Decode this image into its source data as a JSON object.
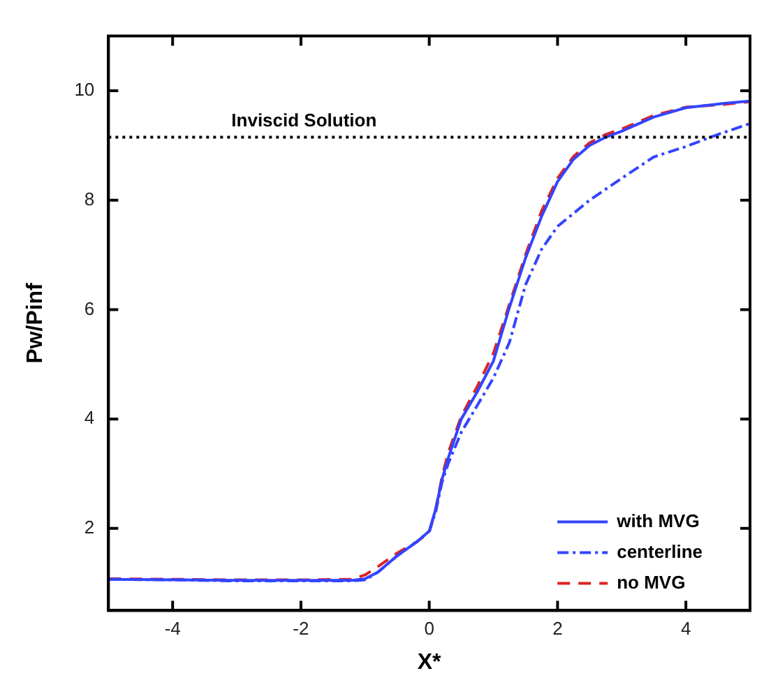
{
  "chart_data": {
    "type": "line",
    "xlabel": "X*",
    "ylabel": "Pw/Pinf",
    "xlim": [
      -5,
      5
    ],
    "xticks": [
      -4,
      -2,
      0,
      2,
      4
    ],
    "ylim": [
      0.5,
      11
    ],
    "yticks": [
      2,
      4,
      6,
      8,
      10
    ],
    "grid": false,
    "legend": "bottom right",
    "marker": "none",
    "ref_lines": [
      {
        "axis": "y",
        "value": 9.15,
        "label": "Inviscid Solution",
        "color": "#000000",
        "line_style": "dotted"
      }
    ],
    "series": [
      {
        "name": "with MVG",
        "color": "#3344ff",
        "line_style": "solid",
        "x": [
          -5,
          -4,
          -3,
          -2,
          -1.2,
          -1,
          -0.8,
          -0.5,
          -0.2,
          0,
          0.1,
          0.2,
          0.3,
          0.5,
          0.75,
          1,
          1.25,
          1.5,
          1.75,
          2,
          2.25,
          2.5,
          2.75,
          3,
          3.5,
          4,
          4.6,
          5
        ],
        "values": [
          1.07,
          1.06,
          1.05,
          1.05,
          1.05,
          1.08,
          1.2,
          1.5,
          1.75,
          1.95,
          2.35,
          2.9,
          3.3,
          4.0,
          4.5,
          5.06,
          6.04,
          6.94,
          7.7,
          8.34,
          8.75,
          9.0,
          9.15,
          9.26,
          9.52,
          9.69,
          9.77,
          9.81
        ]
      },
      {
        "name": "centerline",
        "color": "#3344ff",
        "line_style": "dashdot",
        "x": [
          -5,
          -4,
          -3,
          -2,
          -1.2,
          -1,
          -0.8,
          -0.5,
          -0.2,
          0,
          0.1,
          0.2,
          0.3,
          0.5,
          0.75,
          1,
          1.25,
          1.5,
          1.75,
          2,
          2.5,
          3,
          3.5,
          4,
          4.5,
          5
        ],
        "values": [
          1.07,
          1.06,
          1.04,
          1.04,
          1.04,
          1.06,
          1.2,
          1.5,
          1.75,
          1.95,
          2.3,
          2.85,
          3.2,
          3.76,
          4.25,
          4.75,
          5.4,
          6.45,
          7.1,
          7.52,
          8.0,
          8.4,
          8.79,
          8.98,
          9.2,
          9.4
        ]
      },
      {
        "name": "no MVG",
        "color": "#dd2222",
        "line_style": "dashed",
        "x": [
          -5,
          -4,
          -3,
          -2,
          -1.2,
          -1,
          -0.8,
          -0.5,
          -0.2,
          0,
          0.1,
          0.2,
          0.3,
          0.5,
          0.75,
          1,
          1.25,
          1.5,
          1.75,
          2,
          2.25,
          2.5,
          2.75,
          3,
          3.5,
          4,
          4.6,
          5
        ],
        "values": [
          1.08,
          1.07,
          1.06,
          1.06,
          1.07,
          1.15,
          1.3,
          1.55,
          1.75,
          1.93,
          2.35,
          2.95,
          3.4,
          4.05,
          4.6,
          5.2,
          6.1,
          7.0,
          7.8,
          8.4,
          8.8,
          9.05,
          9.2,
          9.3,
          9.55,
          9.7,
          9.75,
          9.8
        ]
      }
    ]
  }
}
